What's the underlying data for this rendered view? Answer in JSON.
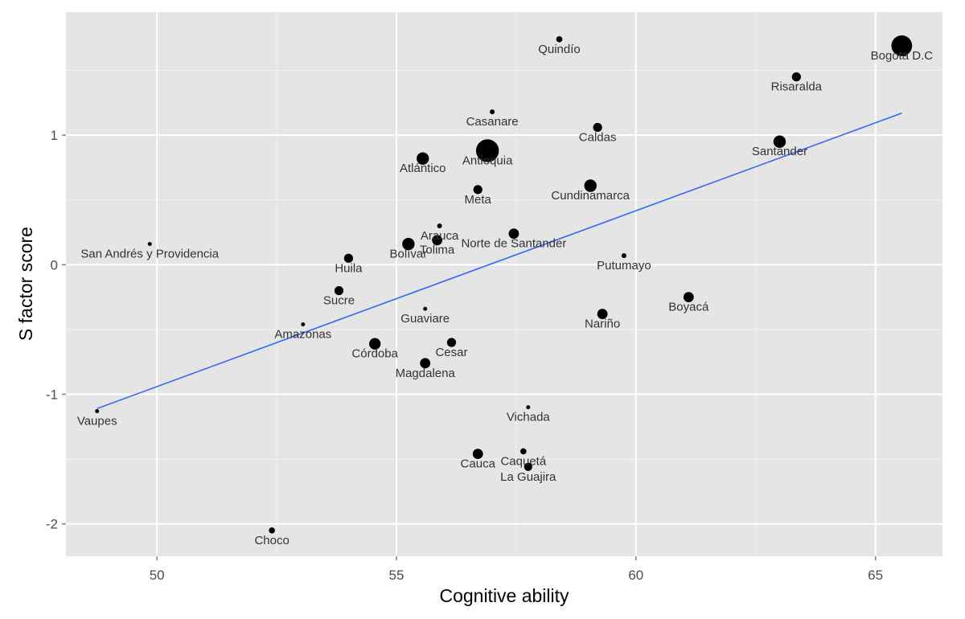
{
  "chart_data": {
    "type": "scatter",
    "title": "",
    "xlabel": "Cognitive ability",
    "ylabel": "S factor score",
    "xlim": [
      48.1,
      66.4
    ],
    "ylim": [
      -2.25,
      1.95
    ],
    "xticks": [
      50,
      55,
      60,
      65
    ],
    "yticks": [
      -2,
      -1,
      0,
      1
    ],
    "grid": true,
    "legend": "none",
    "colors": {
      "panel": "#e5e5e5",
      "grid_major": "#ffffff",
      "grid_minor": "#f2f2f2",
      "point": "#000000",
      "line": "#3366ff"
    },
    "points": [
      {
        "label": "Bogota D.C",
        "x": 65.55,
        "y": 1.69,
        "size": 5
      },
      {
        "label": "Quindío",
        "x": 58.4,
        "y": 1.74,
        "size": 1.5
      },
      {
        "label": "Risaralda",
        "x": 63.35,
        "y": 1.45,
        "size": 2.2
      },
      {
        "label": "Casanare",
        "x": 57.0,
        "y": 1.18,
        "size": 1.2
      },
      {
        "label": "Caldas",
        "x": 59.2,
        "y": 1.06,
        "size": 2.2
      },
      {
        "label": "Santander",
        "x": 63.0,
        "y": 0.95,
        "size": 3
      },
      {
        "label": "Antioquia",
        "x": 56.9,
        "y": 0.88,
        "size": 5.5
      },
      {
        "label": "Atlántico",
        "x": 55.55,
        "y": 0.82,
        "size": 3
      },
      {
        "label": "Cundinamarca",
        "x": 59.05,
        "y": 0.61,
        "size": 3
      },
      {
        "label": "Meta",
        "x": 56.7,
        "y": 0.58,
        "size": 2.2
      },
      {
        "label": "Arauca",
        "x": 55.9,
        "y": 0.3,
        "size": 1.2
      },
      {
        "label": "Norte de Santander",
        "x": 57.45,
        "y": 0.24,
        "size": 2.5
      },
      {
        "label": "Tolima",
        "x": 55.85,
        "y": 0.19,
        "size": 2.5
      },
      {
        "label": "Bolívar",
        "x": 55.25,
        "y": 0.16,
        "size": 3
      },
      {
        "label": "San Andrés y Providencia",
        "x": 49.85,
        "y": 0.16,
        "size": 1
      },
      {
        "label": "Putumayo",
        "x": 59.75,
        "y": 0.07,
        "size": 1.2
      },
      {
        "label": "Huila",
        "x": 54.0,
        "y": 0.05,
        "size": 2.2
      },
      {
        "label": "Sucre",
        "x": 53.8,
        "y": -0.2,
        "size": 2.2
      },
      {
        "label": "Boyacá",
        "x": 61.1,
        "y": -0.25,
        "size": 2.5
      },
      {
        "label": "Guaviare",
        "x": 55.6,
        "y": -0.34,
        "size": 1
      },
      {
        "label": "Nariño",
        "x": 59.3,
        "y": -0.38,
        "size": 2.5
      },
      {
        "label": "Amazonas",
        "x": 53.05,
        "y": -0.46,
        "size": 1
      },
      {
        "label": "Córdoba",
        "x": 54.55,
        "y": -0.61,
        "size": 2.8
      },
      {
        "label": "Cesar",
        "x": 56.15,
        "y": -0.6,
        "size": 2.2
      },
      {
        "label": "Magdalena",
        "x": 55.6,
        "y": -0.76,
        "size": 2.5
      },
      {
        "label": "Vichada",
        "x": 57.75,
        "y": -1.1,
        "size": 1
      },
      {
        "label": "Vaupes",
        "x": 48.75,
        "y": -1.13,
        "size": 1
      },
      {
        "label": "Caquetá",
        "x": 57.65,
        "y": -1.44,
        "size": 1.5
      },
      {
        "label": "Cauca",
        "x": 56.7,
        "y": -1.46,
        "size": 2.5
      },
      {
        "label": "La Guajira",
        "x": 57.75,
        "y": -1.56,
        "size": 2
      },
      {
        "label": "Choco",
        "x": 52.4,
        "y": -2.05,
        "size": 1.5
      }
    ],
    "fit_line": {
      "x": [
        48.75,
        65.55
      ],
      "y": [
        -1.11,
        1.17
      ]
    }
  }
}
